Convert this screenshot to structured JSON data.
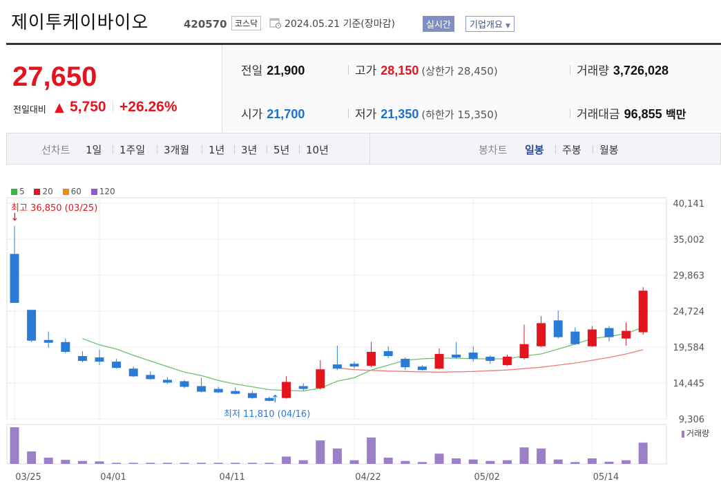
{
  "header": {
    "title": "제이투케이바이오",
    "code": "420570",
    "market": "코스닥",
    "date": "2024.05.21 기준(장마감)",
    "realtime_label": "실시간",
    "overview_label": "기업개요"
  },
  "price": {
    "current": "27,650",
    "change_label": "전일대비",
    "change_arrow": "▲",
    "change_value": "5,750",
    "change_pct": "+26.26%"
  },
  "stats": {
    "prev_label": "전일",
    "prev_value": "21,900",
    "high_label": "고가",
    "high_value": "28,150",
    "upper_limit": "(상한가 28,450)",
    "volume_label": "거래량",
    "volume_value": "3,726,028",
    "open_label": "시가",
    "open_value": "21,700",
    "low_label": "저가",
    "low_value": "21,350",
    "lower_limit": "(하한가 15,350)",
    "amount_label": "거래대금",
    "amount_value": "96,855",
    "amount_unit": "백만"
  },
  "tabs": {
    "line_chart_label": "선차트",
    "periods": [
      "1일",
      "1주일",
      "3개월",
      "1년",
      "3년",
      "5년",
      "10년"
    ],
    "candle_label": "봉차트",
    "candle_periods": [
      "일봉",
      "주봉",
      "월봉"
    ],
    "active_candle": "일봉"
  },
  "chart_data": {
    "type": "candlestick",
    "legend": [
      {
        "name": "5",
        "color": "#3cb44b"
      },
      {
        "name": "20",
        "color": "#e4141e"
      },
      {
        "name": "60",
        "color": "#f08c00"
      },
      {
        "name": "120",
        "color": "#8e5cc9"
      }
    ],
    "y_ticks": [
      "40,141",
      "35,002",
      "29,863",
      "24,724",
      "19,584",
      "14,445",
      "9,306"
    ],
    "y_range": [
      9306,
      40141
    ],
    "x_ticks": [
      {
        "label": "03/25",
        "index": 0
      },
      {
        "label": "04/01",
        "index": 5
      },
      {
        "label": "04/11",
        "index": 12
      },
      {
        "label": "04/22",
        "index": 20
      },
      {
        "label": "05/02",
        "index": 27
      },
      {
        "label": "05/14",
        "index": 34
      }
    ],
    "high_annotation": "최고 36,850 (03/25)",
    "low_annotation": "최저 11,810 (04/16)",
    "volume_label": "거래량",
    "candles": [
      {
        "o": 32900,
        "c": 25900,
        "h": 36850,
        "l": 25900,
        "v": 100
      },
      {
        "o": 24900,
        "c": 20500,
        "h": 24900,
        "l": 20300,
        "v": 34
      },
      {
        "o": 20600,
        "c": 20200,
        "h": 21800,
        "l": 19500,
        "v": 17
      },
      {
        "o": 20300,
        "c": 18900,
        "h": 20800,
        "l": 18700,
        "v": 11
      },
      {
        "o": 18300,
        "c": 17600,
        "h": 19000,
        "l": 17400,
        "v": 8
      },
      {
        "o": 18100,
        "c": 17500,
        "h": 19200,
        "l": 17000,
        "v": 7
      },
      {
        "o": 17500,
        "c": 16600,
        "h": 17900,
        "l": 16500,
        "v": 3
      },
      {
        "o": 16500,
        "c": 15400,
        "h": 16800,
        "l": 15300,
        "v": 3
      },
      {
        "o": 15600,
        "c": 15000,
        "h": 16100,
        "l": 14900,
        "v": 3
      },
      {
        "o": 14900,
        "c": 14500,
        "h": 15300,
        "l": 14300,
        "v": 3
      },
      {
        "o": 14700,
        "c": 13900,
        "h": 14900,
        "l": 13700,
        "v": 3
      },
      {
        "o": 14000,
        "c": 13200,
        "h": 15200,
        "l": 13100,
        "v": 3
      },
      {
        "o": 13600,
        "c": 13100,
        "h": 13900,
        "l": 13000,
        "v": 3
      },
      {
        "o": 13300,
        "c": 12900,
        "h": 13800,
        "l": 12800,
        "v": 3
      },
      {
        "o": 13000,
        "c": 12300,
        "h": 13300,
        "l": 12200,
        "v": 3
      },
      {
        "o": 12300,
        "c": 11900,
        "h": 12500,
        "l": 11810,
        "v": 3
      },
      {
        "o": 12300,
        "c": 14600,
        "h": 15400,
        "l": 12200,
        "v": 20
      },
      {
        "o": 14000,
        "c": 13600,
        "h": 14400,
        "l": 13300,
        "v": 10
      },
      {
        "o": 13700,
        "c": 16400,
        "h": 17700,
        "l": 13500,
        "v": 64
      },
      {
        "o": 17100,
        "c": 16500,
        "h": 19800,
        "l": 16300,
        "v": 42
      },
      {
        "o": 17200,
        "c": 16800,
        "h": 17500,
        "l": 16500,
        "v": 10
      },
      {
        "o": 16900,
        "c": 18900,
        "h": 20300,
        "l": 16700,
        "v": 72
      },
      {
        "o": 19000,
        "c": 18300,
        "h": 19700,
        "l": 18000,
        "v": 17
      },
      {
        "o": 17900,
        "c": 16700,
        "h": 18100,
        "l": 16300,
        "v": 8
      },
      {
        "o": 16800,
        "c": 16300,
        "h": 17000,
        "l": 16200,
        "v": 5
      },
      {
        "o": 16500,
        "c": 18600,
        "h": 19400,
        "l": 16400,
        "v": 28
      },
      {
        "o": 18500,
        "c": 18100,
        "h": 20300,
        "l": 17900,
        "v": 15
      },
      {
        "o": 18800,
        "c": 17900,
        "h": 19700,
        "l": 17500,
        "v": 12
      },
      {
        "o": 18200,
        "c": 17600,
        "h": 18400,
        "l": 17200,
        "v": 8
      },
      {
        "o": 17000,
        "c": 18200,
        "h": 18500,
        "l": 16900,
        "v": 10
      },
      {
        "o": 18000,
        "c": 20000,
        "h": 22800,
        "l": 17800,
        "v": 45
      },
      {
        "o": 19700,
        "c": 23000,
        "h": 24000,
        "l": 19600,
        "v": 42
      },
      {
        "o": 23400,
        "c": 21000,
        "h": 24800,
        "l": 20800,
        "v": 12
      },
      {
        "o": 21800,
        "c": 20000,
        "h": 22400,
        "l": 19900,
        "v": 5
      },
      {
        "o": 19700,
        "c": 22100,
        "h": 22600,
        "l": 19600,
        "v": 15
      },
      {
        "o": 22300,
        "c": 21000,
        "h": 22600,
        "l": 20400,
        "v": 6
      },
      {
        "o": 20800,
        "c": 21900,
        "h": 23100,
        "l": 19800,
        "v": 10
      },
      {
        "o": 21700,
        "c": 27650,
        "h": 28150,
        "l": 21350,
        "v": 58
      }
    ],
    "ma5": [
      null,
      null,
      null,
      null,
      20800,
      19900,
      19300,
      18400,
      17600,
      16800,
      16000,
      15500,
      14800,
      14300,
      13900,
      13500,
      13400,
      13300,
      13700,
      14700,
      15200,
      16300,
      17000,
      17700,
      17900,
      18000,
      18000,
      17900,
      17900,
      17900,
      18300,
      18600,
      19300,
      20000,
      20800,
      21100,
      21500,
      22400
    ],
    "ma20": [
      null,
      null,
      null,
      null,
      null,
      null,
      null,
      null,
      null,
      null,
      null,
      null,
      null,
      null,
      null,
      null,
      null,
      null,
      null,
      16600,
      16350,
      16250,
      16150,
      16100,
      16050,
      16000,
      16050,
      16100,
      16200,
      16300,
      16500,
      16700,
      17000,
      17300,
      17700,
      18100,
      18600,
      19200
    ]
  }
}
